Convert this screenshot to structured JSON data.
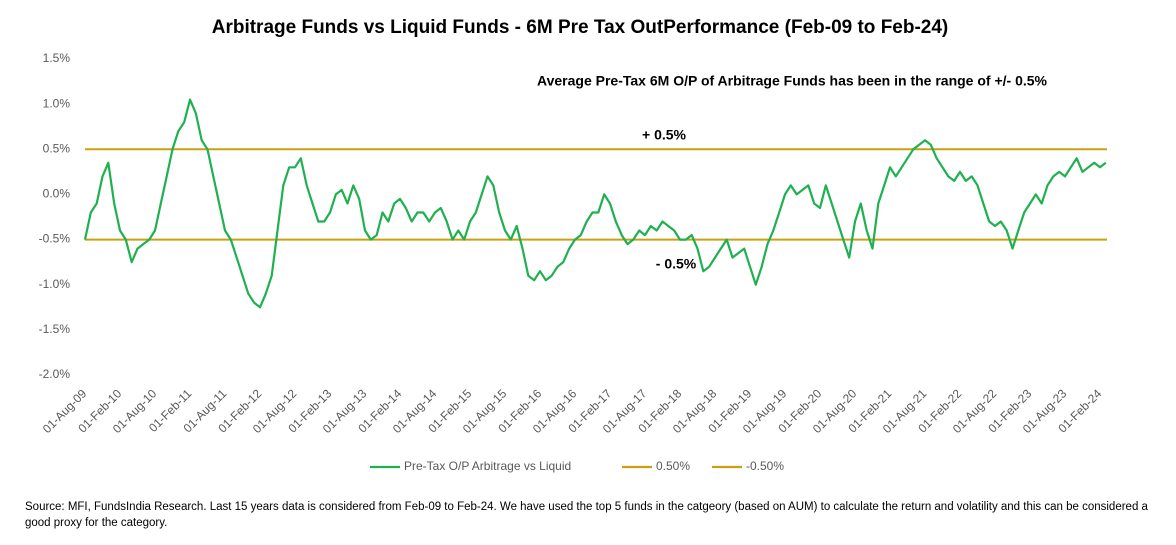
{
  "chart_data": {
    "type": "line",
    "title": "Arbitrage Funds vs Liquid Funds - 6M Pre Tax OutPerformance (Feb-09 to Feb-24)",
    "annotations": [
      "Average Pre-Tax 6M O/P of Arbitrage Funds has been in the range of +/- 0.5%",
      "+ 0.5%",
      "- 0.5%"
    ],
    "source": "Source: MFI, FundsIndia Research. Last 15 years data is considered from Feb-09 to Feb-24. We have used the top 5 funds in the catgeory (based on AUM) to calculate the return and volatility and this can be considered a good proxy for the category.",
    "categories": [
      "01-Aug-09",
      null,
      null,
      null,
      null,
      null,
      "01-Feb-10",
      null,
      null,
      null,
      null,
      null,
      "01-Aug-10",
      null,
      null,
      null,
      null,
      null,
      "01-Feb-11",
      null,
      null,
      null,
      null,
      null,
      "01-Aug-11",
      null,
      null,
      null,
      null,
      null,
      "01-Feb-12",
      null,
      null,
      null,
      null,
      null,
      "01-Aug-12",
      null,
      null,
      null,
      null,
      null,
      "01-Feb-13",
      null,
      null,
      null,
      null,
      null,
      "01-Aug-13",
      null,
      null,
      null,
      null,
      null,
      "01-Feb-14",
      null,
      null,
      null,
      null,
      null,
      "01-Aug-14",
      null,
      null,
      null,
      null,
      null,
      "01-Feb-15",
      null,
      null,
      null,
      null,
      null,
      "01-Aug-15",
      null,
      null,
      null,
      null,
      null,
      "01-Feb-16",
      null,
      null,
      null,
      null,
      null,
      "01-Aug-16",
      null,
      null,
      null,
      null,
      null,
      "01-Feb-17",
      null,
      null,
      null,
      null,
      null,
      "01-Aug-17",
      null,
      null,
      null,
      null,
      null,
      "01-Feb-18",
      null,
      null,
      null,
      null,
      null,
      "01-Aug-18",
      null,
      null,
      null,
      null,
      null,
      "01-Feb-19",
      null,
      null,
      null,
      null,
      null,
      "01-Aug-19",
      null,
      null,
      null,
      null,
      null,
      "01-Feb-20",
      null,
      null,
      null,
      null,
      null,
      "01-Aug-20",
      null,
      null,
      null,
      null,
      null,
      "01-Feb-21",
      null,
      null,
      null,
      null,
      null,
      "01-Aug-21",
      null,
      null,
      null,
      null,
      null,
      "01-Feb-22",
      null,
      null,
      null,
      null,
      null,
      "01-Aug-22",
      null,
      null,
      null,
      null,
      null,
      "01-Feb-23",
      null,
      null,
      null,
      null,
      null,
      "01-Aug-23",
      null,
      null,
      null,
      null,
      null,
      "01-Feb-24",
      null
    ],
    "series": [
      {
        "name": "Pre-Tax O/P Arbitrage vs Liquid",
        "color": "#1fb050",
        "values": [
          -0.5,
          -0.2,
          -0.1,
          0.2,
          0.35,
          -0.1,
          -0.4,
          -0.5,
          -0.75,
          -0.6,
          -0.55,
          -0.5,
          -0.4,
          -0.1,
          0.2,
          0.5,
          0.7,
          0.8,
          1.05,
          0.9,
          0.6,
          0.5,
          0.2,
          -0.1,
          -0.4,
          -0.5,
          -0.7,
          -0.9,
          -1.1,
          -1.2,
          -1.25,
          -1.1,
          -0.9,
          -0.4,
          0.1,
          0.3,
          0.3,
          0.4,
          0.1,
          -0.1,
          -0.3,
          -0.3,
          -0.2,
          0.0,
          0.05,
          -0.1,
          0.1,
          -0.05,
          -0.4,
          -0.5,
          -0.45,
          -0.2,
          -0.3,
          -0.1,
          -0.05,
          -0.15,
          -0.3,
          -0.2,
          -0.2,
          -0.3,
          -0.2,
          -0.15,
          -0.3,
          -0.5,
          -0.4,
          -0.5,
          -0.3,
          -0.2,
          0.0,
          0.2,
          0.1,
          -0.2,
          -0.4,
          -0.5,
          -0.35,
          -0.6,
          -0.9,
          -0.95,
          -0.85,
          -0.95,
          -0.9,
          -0.8,
          -0.75,
          -0.6,
          -0.5,
          -0.45,
          -0.3,
          -0.2,
          -0.2,
          0.0,
          -0.1,
          -0.3,
          -0.45,
          -0.55,
          -0.5,
          -0.4,
          -0.45,
          -0.35,
          -0.4,
          -0.3,
          -0.35,
          -0.4,
          -0.5,
          -0.5,
          -0.45,
          -0.6,
          -0.85,
          -0.8,
          -0.7,
          -0.6,
          -0.5,
          -0.7,
          -0.65,
          -0.6,
          -0.8,
          -1.0,
          -0.8,
          -0.55,
          -0.4,
          -0.2,
          0.0,
          0.1,
          0.0,
          0.05,
          0.1,
          -0.1,
          -0.15,
          0.1,
          -0.1,
          -0.3,
          -0.5,
          -0.7,
          -0.3,
          -0.1,
          -0.4,
          -0.6,
          -0.1,
          0.1,
          0.3,
          0.2,
          0.3,
          0.4,
          0.5,
          0.55,
          0.6,
          0.55,
          0.4,
          0.3,
          0.2,
          0.15,
          0.25,
          0.15,
          0.2,
          0.1,
          -0.1,
          -0.3,
          -0.35,
          -0.3,
          -0.4,
          -0.6,
          -0.4,
          -0.2,
          -0.1,
          0.0,
          -0.1,
          0.1,
          0.2,
          0.25,
          0.2,
          0.3,
          0.4,
          0.25,
          0.3,
          0.35,
          0.3,
          0.35
        ]
      }
    ],
    "reference_lines": [
      {
        "name": "0.50%",
        "value": 0.5,
        "color": "#c9a010"
      },
      {
        "name": "-0.50%",
        "value": -0.5,
        "color": "#c9a010"
      }
    ],
    "ylim": [
      -2.0,
      1.5
    ],
    "yticks": [
      {
        "value": -2.0,
        "label": "-2.0%"
      },
      {
        "value": -1.5,
        "label": "-1.5%"
      },
      {
        "value": -1.0,
        "label": "-1.0%"
      },
      {
        "value": -0.5,
        "label": "-0.5%"
      },
      {
        "value": 0.0,
        "label": "0.0%"
      },
      {
        "value": 0.5,
        "label": "0.5%"
      },
      {
        "value": 1.0,
        "label": "1.0%"
      },
      {
        "value": 1.5,
        "label": "1.5%"
      }
    ],
    "legend": "bottom"
  }
}
